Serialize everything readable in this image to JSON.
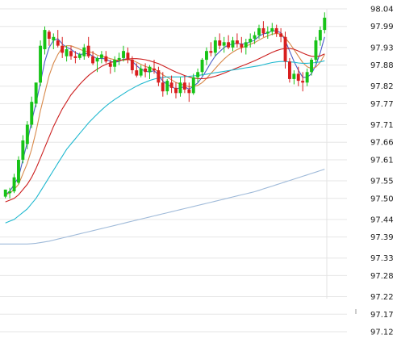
{
  "chart_data": {
    "type": "candlestick",
    "y_axis": {
      "position": "right",
      "ticks": [
        "98.04",
        "97.99",
        "97.93",
        "97.88",
        "97.82",
        "97.77",
        "97.71",
        "97.66",
        "97.61",
        "97.55",
        "97.50",
        "97.44",
        "97.39",
        "97.33",
        "97.28",
        "97.22",
        "97.17",
        "97.12"
      ],
      "range": [
        97.12,
        98.04
      ]
    },
    "grid": true,
    "colors": {
      "up": "#17c317",
      "down": "#d81e1e",
      "ma_short": "#4a5cc8",
      "ma_mid": "#d8894a",
      "ma_long": "#cc1f1f",
      "ma_longer": "#1fb8cf",
      "ma_longest": "#9fbad9"
    },
    "candles": [
      [
        97.505,
        97.525,
        97.5,
        97.525
      ],
      [
        97.515,
        97.53,
        97.5,
        97.52
      ],
      [
        97.52,
        97.57,
        97.515,
        97.56
      ],
      [
        97.545,
        97.62,
        97.54,
        97.61
      ],
      [
        97.61,
        97.68,
        97.6,
        97.665
      ],
      [
        97.655,
        97.72,
        97.64,
        97.71
      ],
      [
        97.71,
        97.79,
        97.7,
        97.775
      ],
      [
        97.77,
        97.83,
        97.76,
        97.83
      ],
      [
        97.83,
        97.95,
        97.82,
        97.935
      ],
      [
        97.925,
        97.99,
        97.91,
        97.98
      ],
      [
        97.975,
        97.98,
        97.935,
        97.955
      ],
      [
        97.95,
        97.97,
        97.925,
        97.96
      ],
      [
        97.95,
        97.98,
        97.93,
        97.935
      ],
      [
        97.935,
        97.96,
        97.9,
        97.915
      ],
      [
        97.905,
        97.935,
        97.89,
        97.925
      ],
      [
        97.92,
        97.935,
        97.895,
        97.905
      ],
      [
        97.905,
        97.92,
        97.885,
        97.9
      ],
      [
        97.9,
        97.915,
        97.895,
        97.91
      ],
      [
        97.905,
        97.94,
        97.895,
        97.93
      ],
      [
        97.935,
        97.96,
        97.9,
        97.905
      ],
      [
        97.905,
        97.92,
        97.88,
        97.885
      ],
      [
        97.89,
        97.905,
        97.86,
        97.9
      ],
      [
        97.9,
        97.92,
        97.885,
        97.91
      ],
      [
        97.905,
        97.92,
        97.885,
        97.89
      ],
      [
        97.885,
        97.895,
        97.855,
        97.875
      ],
      [
        97.875,
        97.905,
        97.86,
        97.895
      ],
      [
        97.895,
        97.915,
        97.88,
        97.9
      ],
      [
        97.9,
        97.935,
        97.89,
        97.92
      ],
      [
        97.915,
        97.93,
        97.885,
        97.895
      ],
      [
        97.895,
        97.905,
        97.855,
        97.865
      ],
      [
        97.865,
        97.885,
        97.845,
        97.85
      ],
      [
        97.85,
        97.88,
        97.845,
        97.87
      ],
      [
        97.87,
        97.885,
        97.845,
        97.86
      ],
      [
        97.86,
        97.88,
        97.84,
        97.875
      ],
      [
        97.87,
        97.895,
        97.855,
        97.865
      ],
      [
        97.865,
        97.875,
        97.82,
        97.83
      ],
      [
        97.83,
        97.86,
        97.79,
        97.805
      ],
      [
        97.805,
        97.84,
        97.795,
        97.835
      ],
      [
        97.83,
        97.85,
        97.8,
        97.815
      ],
      [
        97.815,
        97.83,
        97.785,
        97.8
      ],
      [
        97.8,
        97.845,
        97.79,
        97.83
      ],
      [
        97.83,
        97.85,
        97.8,
        97.81
      ],
      [
        97.81,
        97.83,
        97.775,
        97.8
      ],
      [
        97.8,
        97.855,
        97.795,
        97.845
      ],
      [
        97.845,
        97.87,
        97.83,
        97.86
      ],
      [
        97.86,
        97.9,
        97.85,
        97.895
      ],
      [
        97.895,
        97.93,
        97.88,
        97.92
      ],
      [
        97.92,
        97.945,
        97.905,
        97.915
      ],
      [
        97.915,
        97.96,
        97.905,
        97.95
      ],
      [
        97.95,
        97.97,
        97.925,
        97.935
      ],
      [
        97.935,
        97.96,
        97.915,
        97.945
      ],
      [
        97.945,
        97.965,
        97.925,
        97.93
      ],
      [
        97.93,
        97.96,
        97.92,
        97.95
      ],
      [
        97.95,
        97.97,
        97.93,
        97.94
      ],
      [
        97.94,
        97.96,
        97.915,
        97.93
      ],
      [
        97.93,
        97.955,
        97.91,
        97.945
      ],
      [
        97.945,
        97.97,
        97.93,
        97.955
      ],
      [
        97.955,
        97.975,
        97.94,
        97.965
      ],
      [
        97.965,
        97.995,
        97.955,
        97.985
      ],
      [
        97.985,
        98.005,
        97.96,
        97.97
      ],
      [
        97.97,
        97.99,
        97.955,
        97.975
      ],
      [
        97.975,
        98.0,
        97.965,
        97.985
      ],
      [
        97.985,
        97.995,
        97.96,
        97.97
      ],
      [
        97.97,
        97.985,
        97.945,
        97.96
      ],
      [
        97.96,
        97.975,
        97.87,
        97.89
      ],
      [
        97.89,
        97.9,
        97.83,
        97.84
      ],
      [
        97.84,
        97.865,
        97.825,
        97.855
      ],
      [
        97.855,
        97.875,
        97.82,
        97.835
      ],
      [
        97.835,
        97.86,
        97.805,
        97.83
      ],
      [
        97.83,
        97.87,
        97.82,
        97.86
      ],
      [
        97.86,
        97.9,
        97.85,
        97.895
      ],
      [
        97.895,
        97.96,
        97.885,
        97.95
      ],
      [
        97.95,
        97.99,
        97.935,
        97.98
      ],
      [
        97.98,
        98.03,
        97.97,
        98.015
      ]
    ],
    "moving_averages": [
      {
        "color_key": "ma_short",
        "values": [
          97.51,
          97.52,
          97.54,
          97.56,
          97.61,
          97.66,
          97.72,
          97.77,
          97.83,
          97.89,
          97.93,
          97.95,
          97.955,
          97.94,
          97.93,
          97.925,
          97.915,
          97.91,
          97.912,
          97.913,
          97.905,
          97.898,
          97.899,
          97.897,
          97.89,
          97.888,
          97.89,
          97.897,
          97.897,
          97.891,
          97.878,
          97.868,
          97.863,
          97.86,
          97.864,
          97.852,
          97.834,
          97.825,
          97.818,
          97.812,
          97.815,
          97.818,
          97.811,
          97.82,
          97.829,
          97.846,
          97.866,
          97.887,
          97.906,
          97.918,
          97.93,
          97.937,
          97.94,
          97.942,
          97.94,
          97.941,
          97.946,
          97.951,
          97.962,
          97.969,
          97.971,
          97.978,
          97.977,
          97.972,
          97.95,
          97.92,
          97.89,
          97.865,
          97.845,
          97.845,
          97.855,
          97.88,
          97.915,
          97.96
        ]
      },
      {
        "color_key": "ma_mid",
        "values": [
          97.51,
          97.515,
          97.525,
          97.54,
          97.57,
          97.6,
          97.64,
          97.69,
          97.75,
          97.8,
          97.85,
          97.885,
          97.91,
          97.93,
          97.935,
          97.935,
          97.93,
          97.925,
          97.92,
          97.918,
          97.915,
          97.908,
          97.905,
          97.902,
          97.898,
          97.895,
          97.893,
          97.894,
          97.895,
          97.894,
          97.888,
          97.882,
          97.876,
          97.872,
          97.868,
          97.862,
          97.852,
          97.845,
          97.838,
          97.83,
          97.826,
          97.822,
          97.818,
          97.819,
          97.822,
          97.83,
          97.842,
          97.856,
          97.87,
          97.884,
          97.897,
          97.908,
          97.917,
          97.924,
          97.929,
          97.934,
          97.939,
          97.944,
          97.951,
          97.958,
          97.963,
          97.968,
          97.97,
          97.968,
          97.958,
          97.942,
          97.924,
          97.905,
          97.887,
          97.875,
          97.87,
          97.874,
          97.888,
          97.91
        ]
      },
      {
        "color_key": "ma_long",
        "values": [
          97.49,
          97.495,
          97.5,
          97.51,
          97.525,
          97.54,
          97.56,
          97.585,
          97.615,
          97.645,
          97.675,
          97.705,
          97.73,
          97.755,
          97.775,
          97.795,
          97.81,
          97.825,
          97.838,
          97.85,
          97.86,
          97.868,
          97.876,
          97.882,
          97.887,
          97.89,
          97.893,
          97.895,
          97.897,
          97.898,
          97.898,
          97.897,
          97.895,
          97.892,
          97.888,
          97.884,
          97.878,
          97.872,
          97.866,
          97.86,
          97.855,
          97.85,
          97.846,
          97.843,
          97.841,
          97.841,
          97.842,
          97.845,
          97.848,
          97.852,
          97.857,
          97.862,
          97.867,
          97.872,
          97.877,
          97.882,
          97.887,
          97.892,
          97.898,
          97.904,
          97.91,
          97.916,
          97.921,
          97.925,
          97.927,
          97.927,
          97.925,
          97.92,
          97.914,
          97.909,
          97.905,
          97.904,
          97.906,
          97.912
        ]
      },
      {
        "color_key": "ma_longer",
        "values": [
          97.43,
          97.435,
          97.44,
          97.45,
          97.46,
          97.47,
          97.485,
          97.5,
          97.52,
          97.54,
          97.56,
          97.58,
          97.6,
          97.62,
          97.64,
          97.655,
          97.67,
          97.685,
          97.7,
          97.715,
          97.728,
          97.74,
          97.752,
          97.763,
          97.773,
          97.782,
          97.79,
          97.798,
          97.806,
          97.813,
          97.82,
          97.826,
          97.831,
          97.836,
          97.84,
          97.843,
          97.845,
          97.846,
          97.846,
          97.846,
          97.846,
          97.847,
          97.848,
          97.849,
          97.85,
          97.852,
          97.854,
          97.856,
          97.858,
          97.86,
          97.862,
          97.864,
          97.866,
          97.868,
          97.87,
          97.872,
          97.874,
          97.876,
          97.878,
          97.881,
          97.884,
          97.887,
          97.889,
          97.89,
          97.89,
          97.889,
          97.888,
          97.886,
          97.885,
          97.885,
          97.886,
          97.887,
          97.889,
          97.892
        ]
      },
      {
        "color_key": "ma_longest",
        "values": [
          97.37,
          97.37,
          97.37,
          97.37,
          97.37,
          97.37,
          97.371,
          97.372,
          97.374,
          97.376,
          97.378,
          97.381,
          97.384,
          97.387,
          97.39,
          97.393,
          97.396,
          97.399,
          97.402,
          97.405,
          97.408,
          97.411,
          97.414,
          97.417,
          97.42,
          97.423,
          97.426,
          97.429,
          97.432,
          97.435,
          97.438,
          97.441,
          97.444,
          97.447,
          97.45,
          97.453,
          97.456,
          97.459,
          97.462,
          97.465,
          97.468,
          97.471,
          97.474,
          97.477,
          97.48,
          97.483,
          97.486,
          97.489,
          97.492,
          97.495,
          97.498,
          97.501,
          97.504,
          97.507,
          97.51,
          97.513,
          97.516,
          97.519,
          97.523,
          97.527,
          97.531,
          97.535,
          97.539,
          97.543,
          97.547,
          97.551,
          97.555,
          97.559,
          97.563,
          97.567,
          97.571,
          97.575,
          97.579,
          97.583
        ]
      }
    ]
  }
}
